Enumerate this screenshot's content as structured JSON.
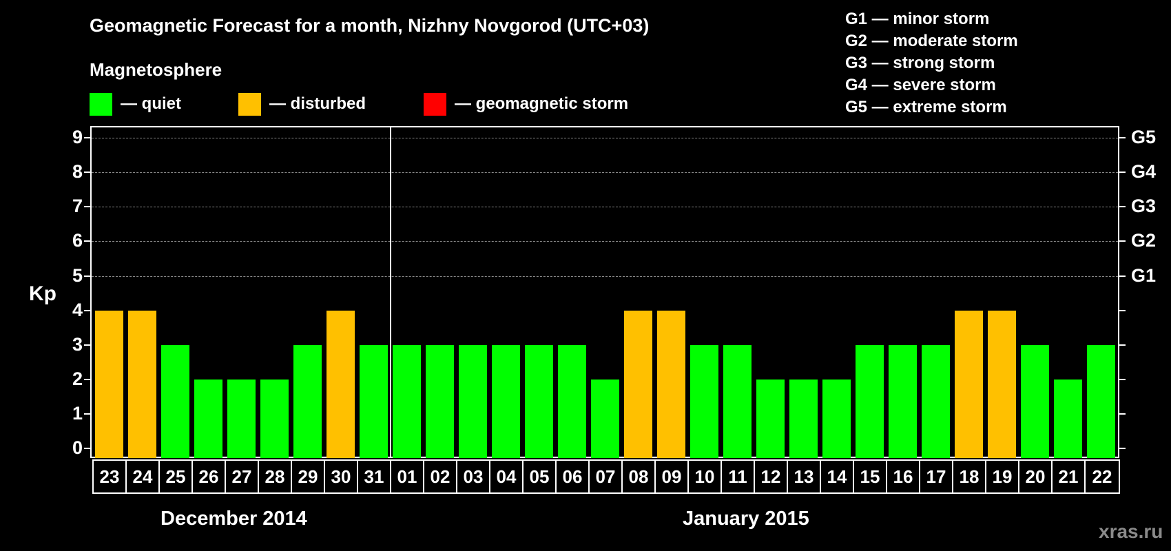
{
  "header": {
    "title": "Geomagnetic Forecast for a month, Nizhny Novgorod (UTC+03)",
    "section": "Magnetosphere"
  },
  "legend": [
    {
      "label": "— quiet",
      "color": "#00ff00"
    },
    {
      "label": "— disturbed",
      "color": "#ffc000"
    },
    {
      "label": "— geomagnetic storm",
      "color": "#ff0000"
    }
  ],
  "g_scale": [
    "G1 — minor storm",
    "G2 — moderate storm",
    "G3 — strong storm",
    "G4 — severe storm",
    "G5 — extreme storm"
  ],
  "axis": {
    "ylabel": "Kp",
    "yticks": [
      "0",
      "1",
      "2",
      "3",
      "4",
      "5",
      "6",
      "7",
      "8",
      "9"
    ],
    "right_labels": {
      "5": "G1",
      "6": "G2",
      "7": "G3",
      "8": "G4",
      "9": "G5"
    }
  },
  "months": [
    "December 2014",
    "January 2015"
  ],
  "watermark": "xras.ru",
  "chart_data": {
    "type": "bar",
    "title": "Geomagnetic Forecast for a month, Nizhny Novgorod (UTC+03)",
    "xlabel": "",
    "ylabel": "Kp",
    "ylim": [
      0,
      9
    ],
    "grid": true,
    "categories": [
      "23",
      "24",
      "25",
      "26",
      "27",
      "28",
      "29",
      "30",
      "31",
      "01",
      "02",
      "03",
      "04",
      "05",
      "06",
      "07",
      "08",
      "09",
      "10",
      "11",
      "12",
      "13",
      "14",
      "15",
      "16",
      "17",
      "18",
      "19",
      "20",
      "21",
      "22"
    ],
    "month_groups": [
      {
        "name": "December 2014",
        "days": [
          "23",
          "24",
          "25",
          "26",
          "27",
          "28",
          "29",
          "30",
          "31"
        ]
      },
      {
        "name": "January 2015",
        "days": [
          "01",
          "02",
          "03",
          "04",
          "05",
          "06",
          "07",
          "08",
          "09",
          "10",
          "11",
          "12",
          "13",
          "14",
          "15",
          "16",
          "17",
          "18",
          "19",
          "20",
          "21",
          "22"
        ]
      }
    ],
    "values": [
      4,
      4,
      3,
      2,
      2,
      2,
      3,
      4,
      3,
      3,
      3,
      3,
      3,
      3,
      3,
      2,
      4,
      4,
      3,
      3,
      2,
      2,
      2,
      3,
      3,
      3,
      4,
      4,
      3,
      2,
      3
    ],
    "status": [
      "disturbed",
      "disturbed",
      "quiet",
      "quiet",
      "quiet",
      "quiet",
      "quiet",
      "disturbed",
      "quiet",
      "quiet",
      "quiet",
      "quiet",
      "quiet",
      "quiet",
      "quiet",
      "quiet",
      "disturbed",
      "disturbed",
      "quiet",
      "quiet",
      "quiet",
      "quiet",
      "quiet",
      "quiet",
      "quiet",
      "quiet",
      "disturbed",
      "disturbed",
      "quiet",
      "quiet",
      "quiet"
    ],
    "legend": [
      "quiet",
      "disturbed",
      "geomagnetic storm"
    ],
    "right_axis": {
      "5": "G1",
      "6": "G2",
      "7": "G3",
      "8": "G4",
      "9": "G5"
    }
  }
}
